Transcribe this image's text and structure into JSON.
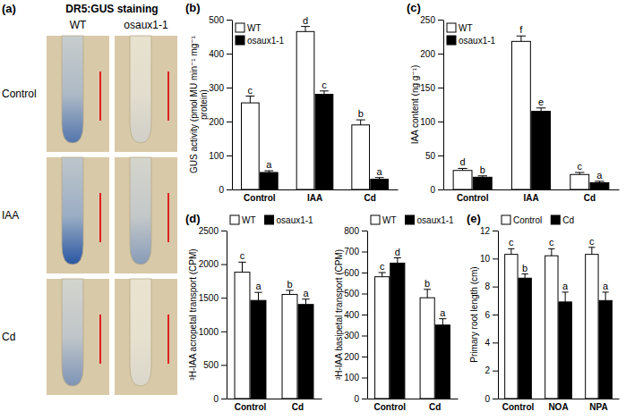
{
  "image_panel": {
    "panel": "(a)",
    "title": "DR5:GUS staining",
    "columns": [
      "WT",
      "osaux1-1"
    ],
    "rows": [
      "Control",
      "IAA",
      "Cd"
    ]
  },
  "chart_data": [
    {
      "type": "bar",
      "panel": "(b)",
      "ylabel": "GUS activity (pmol MU min⁻¹ mg⁻¹ protein)",
      "categories": [
        "Control",
        "IAA",
        "Cd"
      ],
      "series": [
        {
          "name": "WT",
          "color": "#ffffff",
          "values": [
            255,
            465,
            190
          ],
          "errors": [
            20,
            15,
            15
          ],
          "letters": [
            "c",
            "d",
            "b"
          ]
        },
        {
          "name": "osaux1-1",
          "color": "#000000",
          "values": [
            50,
            280,
            30
          ],
          "errors": [
            5,
            10,
            5
          ],
          "letters": [
            "a",
            "c",
            "a"
          ]
        }
      ],
      "ylim": [
        0,
        500
      ],
      "yticks": [
        0,
        100,
        200,
        300,
        400,
        500
      ],
      "legend": "top-left"
    },
    {
      "type": "bar",
      "panel": "(c)",
      "ylabel": "IAA content (ng g⁻¹)",
      "categories": [
        "Control",
        "IAA",
        "Cd"
      ],
      "series": [
        {
          "name": "WT",
          "color": "#ffffff",
          "values": [
            28,
            218,
            22
          ],
          "errors": [
            3,
            8,
            3
          ],
          "letters": [
            "d",
            "f",
            "c"
          ]
        },
        {
          "name": "osaux1-1",
          "color": "#000000",
          "values": [
            18,
            115,
            10
          ],
          "errors": [
            2,
            5,
            2
          ],
          "letters": [
            "b",
            "e",
            "a"
          ]
        }
      ],
      "ylim": [
        0,
        250
      ],
      "yticks": [
        0,
        50,
        100,
        150,
        200,
        250
      ],
      "legend": "top-left"
    },
    {
      "type": "bar",
      "panel": "(d)",
      "ylabel": "³H-IAA acropetal transport (CPM)",
      "categories": [
        "Control",
        "Cd"
      ],
      "series": [
        {
          "name": "WT",
          "color": "#ffffff",
          "values": [
            1880,
            1550
          ],
          "errors": [
            150,
            60
          ],
          "letters": [
            "c",
            "b"
          ]
        },
        {
          "name": "osaux1-1",
          "color": "#000000",
          "values": [
            1460,
            1400
          ],
          "errors": [
            120,
            80
          ],
          "letters": [
            "a",
            "a"
          ]
        }
      ],
      "ylim": [
        0,
        2500
      ],
      "yticks": [
        0,
        500,
        1000,
        1500,
        2000,
        2500
      ],
      "legend": "top"
    },
    {
      "type": "bar",
      "ylabel": "³H-IAA basipetal transport (CPM)",
      "categories": [
        "Control",
        "Cd"
      ],
      "series": [
        {
          "name": "WT",
          "color": "#ffffff",
          "values": [
            580,
            480
          ],
          "errors": [
            20,
            40
          ],
          "letters": [
            "c",
            "b"
          ]
        },
        {
          "name": "osaux1-1",
          "color": "#000000",
          "values": [
            645,
            350
          ],
          "errors": [
            25,
            30
          ],
          "letters": [
            "d",
            "a"
          ]
        }
      ],
      "ylim": [
        0,
        800
      ],
      "yticks": [
        0,
        100,
        200,
        300,
        400,
        500,
        600,
        700,
        800
      ],
      "legend": "top"
    },
    {
      "type": "bar",
      "panel": "(e)",
      "ylabel": "Primary root length (cm)",
      "categories": [
        "Control",
        "NOA",
        "NPA"
      ],
      "series": [
        {
          "name": "Control",
          "color": "#ffffff",
          "values": [
            10.3,
            10.2,
            10.3
          ],
          "errors": [
            0.4,
            0.5,
            0.5
          ],
          "letters": [
            "c",
            "c",
            "c"
          ]
        },
        {
          "name": "Cd",
          "color": "#000000",
          "values": [
            8.6,
            6.9,
            7.0
          ],
          "errors": [
            0.3,
            0.7,
            0.6
          ],
          "letters": [
            "b",
            "a",
            "a"
          ]
        }
      ],
      "ylim": [
        0,
        12
      ],
      "yticks": [
        0,
        2,
        4,
        6,
        8,
        10,
        12
      ],
      "legend": "top"
    }
  ]
}
